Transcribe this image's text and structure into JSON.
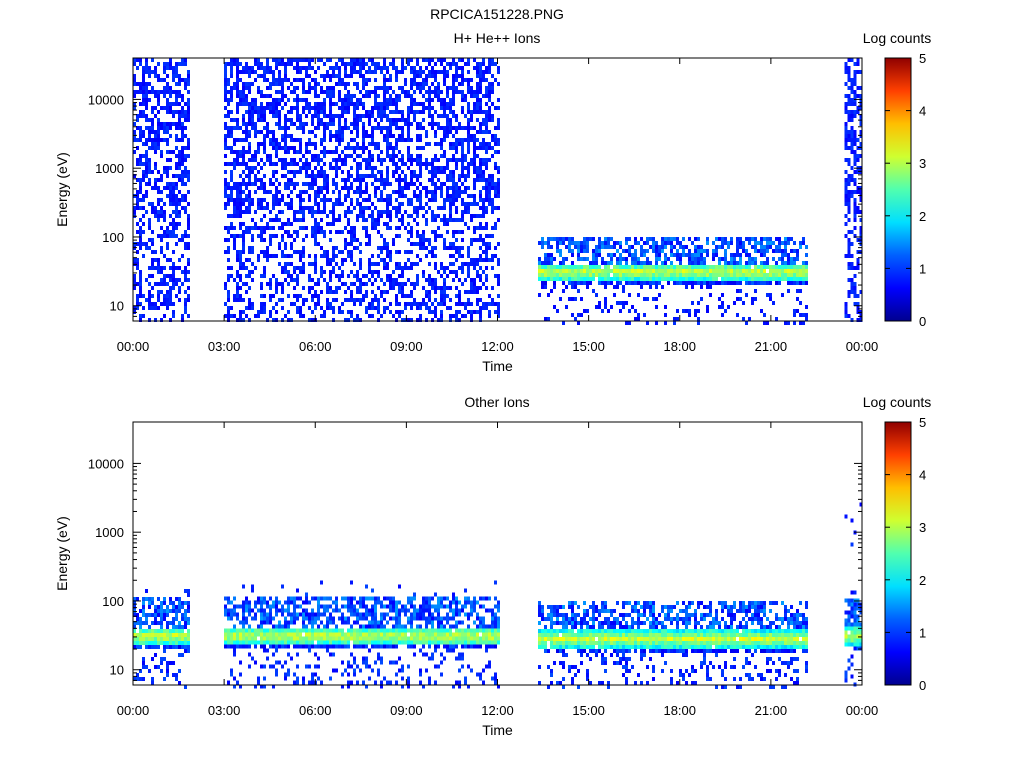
{
  "figure_title": "RPCICA151228.PNG",
  "chart_data": [
    {
      "type": "heatmap",
      "title": "H+ He++ Ions",
      "xlabel": "Time",
      "ylabel": "Energy (eV)",
      "yscale": "log",
      "ylim": [
        6,
        40000
      ],
      "xlim": [
        0,
        24
      ],
      "x_ticks": [
        "00:00",
        "03:00",
        "06:00",
        "09:00",
        "12:00",
        "15:00",
        "18:00",
        "21:00",
        "00:00"
      ],
      "y_ticks": [
        10,
        100,
        1000,
        10000
      ],
      "y_tick_labels": [
        "10",
        "100",
        "1000",
        "10000"
      ],
      "colorbar": {
        "label": "Log counts",
        "range": [
          0,
          5
        ],
        "ticks": [
          "0",
          "1",
          "2",
          "3",
          "4",
          "5"
        ]
      },
      "data_intervals": [
        {
          "start": "00:00",
          "end": "01:50",
          "energy_range": [
            6,
            40000
          ],
          "feature": "sparse background counts, log counts ~0-0.5"
        },
        {
          "start": "03:00",
          "end": "12:00",
          "energy_range": [
            6,
            40000
          ],
          "feature": "sparse background counts, log counts ~0-0.5"
        },
        {
          "start": "13:20",
          "end": "22:10",
          "energy_range": [
            6,
            100
          ],
          "feature": "ion band near 25-40 eV, peak log counts ~2.8"
        },
        {
          "start": "23:25",
          "end": "23:55",
          "energy_range": [
            6,
            40000
          ],
          "feature": "sparse background counts"
        }
      ]
    },
    {
      "type": "heatmap",
      "title": "Other Ions",
      "xlabel": "Time",
      "ylabel": "Energy (eV)",
      "yscale": "log",
      "ylim": [
        6,
        40000
      ],
      "xlim": [
        0,
        24
      ],
      "x_ticks": [
        "00:00",
        "03:00",
        "06:00",
        "09:00",
        "12:00",
        "15:00",
        "18:00",
        "21:00",
        "00:00"
      ],
      "y_ticks": [
        10,
        100,
        1000,
        10000
      ],
      "y_tick_labels": [
        "10",
        "100",
        "1000",
        "10000"
      ],
      "colorbar": {
        "label": "Log counts",
        "range": [
          0,
          5
        ],
        "ticks": [
          "0",
          "1",
          "2",
          "3",
          "4",
          "5"
        ]
      },
      "data_intervals": [
        {
          "start": "00:00",
          "end": "01:50",
          "energy_range": [
            6,
            150
          ],
          "feature": "ion band near 30-40 eV, log counts ~2.5"
        },
        {
          "start": "03:00",
          "end": "12:00",
          "energy_range": [
            6,
            200
          ],
          "feature": "ion band near 30-40 eV, log counts ~2.3"
        },
        {
          "start": "13:20",
          "end": "22:10",
          "energy_range": [
            6,
            100
          ],
          "feature": "ion band near 30 eV, peak log counts ~2.8"
        },
        {
          "start": "23:25",
          "end": "23:55",
          "energy_range": [
            6,
            6000
          ],
          "feature": "ion band near 40 eV"
        }
      ]
    }
  ]
}
